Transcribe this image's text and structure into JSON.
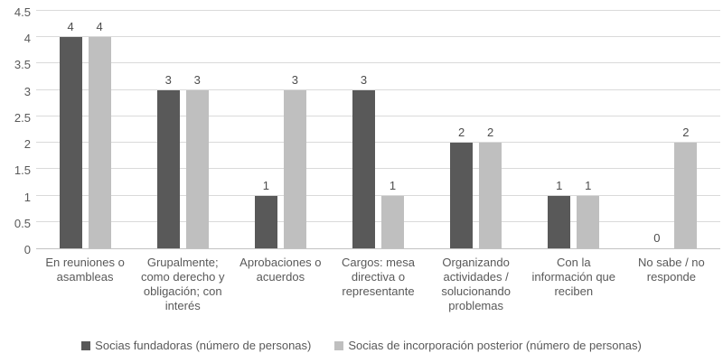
{
  "chart_data": {
    "type": "bar",
    "title": "",
    "xlabel": "",
    "ylabel": "",
    "grid": true,
    "legend_position": "bottom",
    "ylim": [
      0,
      4.5
    ],
    "ytick_step": 0.5,
    "ytick_labels": [
      "0",
      "0.5",
      "1",
      "1.5",
      "2",
      "2.5",
      "3",
      "3.5",
      "4",
      "4.5"
    ],
    "categories": [
      "En reuniones o asambleas",
      "Grupalmente; como derecho y obligación; con interés",
      "Aprobaciones o acuerdos",
      "Cargos: mesa directiva o representante",
      "Organizando actividades / solucionando problemas",
      "Con la información que reciben",
      "No sabe / no responde"
    ],
    "series": [
      {
        "name": "Socias fundadoras (número de personas)",
        "color": "#595959",
        "values": [
          4,
          3,
          1,
          3,
          2,
          1,
          0
        ]
      },
      {
        "name": "Socias de incorporación posterior (número de personas)",
        "color": "#bfbfbf",
        "values": [
          4,
          3,
          3,
          1,
          2,
          1,
          2
        ]
      }
    ],
    "colors": {
      "axis_line": "#c3c3c3",
      "gridline": "#dadada",
      "text": "#595959"
    }
  }
}
